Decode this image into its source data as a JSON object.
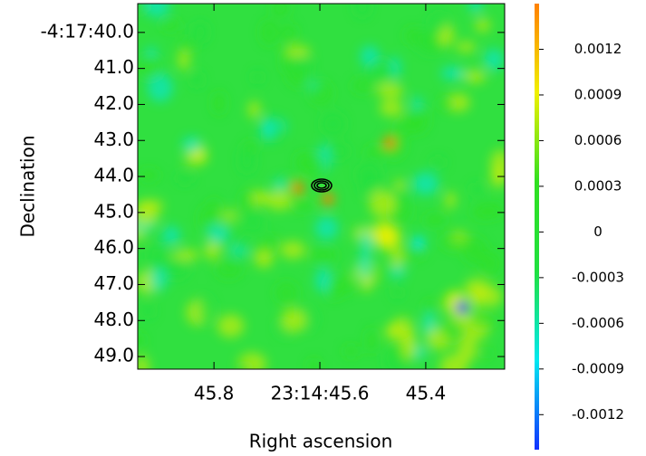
{
  "chart_data": {
    "type": "heatmap",
    "xlabel": "Right ascension",
    "ylabel": "Declination",
    "xlim": [
      45.944,
      45.251
    ],
    "xticks": [
      {
        "value": 45.8,
        "label": "45.8"
      },
      {
        "value": 45.6,
        "label": "23:14:45.6"
      },
      {
        "value": 45.4,
        "label": "45.4"
      }
    ],
    "ylim": [
      49.35,
      39.2
    ],
    "yticks": [
      {
        "value": 40,
        "label": "-4:17:40.0"
      },
      {
        "value": 41,
        "label": "41.0"
      },
      {
        "value": 42,
        "label": "42.0"
      },
      {
        "value": 43,
        "label": "43.0"
      },
      {
        "value": 44,
        "label": "44.0"
      },
      {
        "value": 45,
        "label": "45.0"
      },
      {
        "value": 46,
        "label": "46.0"
      },
      {
        "value": 47,
        "label": "47.0"
      },
      {
        "value": 48,
        "label": "48.0"
      },
      {
        "value": 49,
        "label": "49.0"
      }
    ],
    "colorbar_lim": [
      -0.00143,
      0.0015
    ],
    "colorbar_ticks": [
      0.0012,
      0.0009,
      0.0006,
      0.0003,
      0,
      -0.0003,
      -0.0006,
      -0.0009,
      -0.0012
    ],
    "colormap": [
      "#1030ff",
      "#00e8f0",
      "#20e040",
      "#30e020",
      "#f0f000",
      "#ff8000"
    ]
  }
}
